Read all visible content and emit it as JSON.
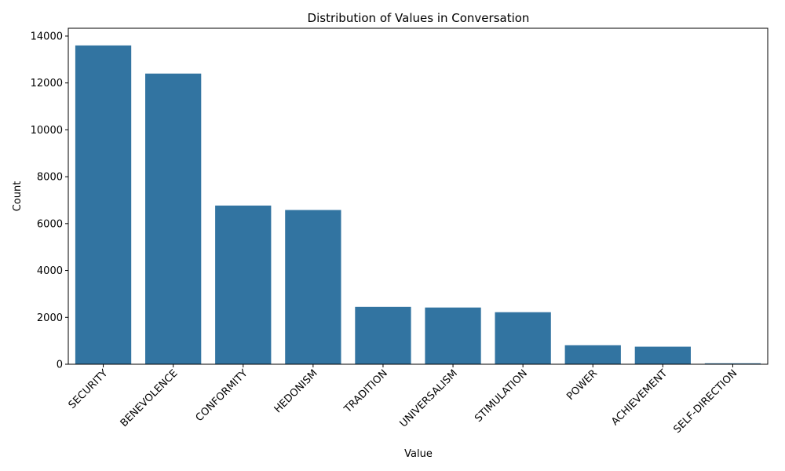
{
  "chart_data": {
    "type": "bar",
    "title": "Distribution of Values in Conversation",
    "xlabel": "Value",
    "ylabel": "Count",
    "categories": [
      "SECURITY",
      "BENEVOLENCE",
      "CONFORMITY",
      "HEDONISM",
      "TRADITION",
      "UNIVERSALISM",
      "STIMULATION",
      "POWER",
      "ACHIEVEMENT",
      "SELF-DIRECTION"
    ],
    "values": [
      13600,
      12400,
      6770,
      6580,
      2450,
      2420,
      2220,
      810,
      750,
      40
    ],
    "ylim": [
      0,
      14333
    ],
    "yticks": [
      0,
      2000,
      4000,
      6000,
      8000,
      10000,
      12000,
      14000
    ],
    "grid": false,
    "colors": {
      "bar": "#3274a1"
    }
  }
}
